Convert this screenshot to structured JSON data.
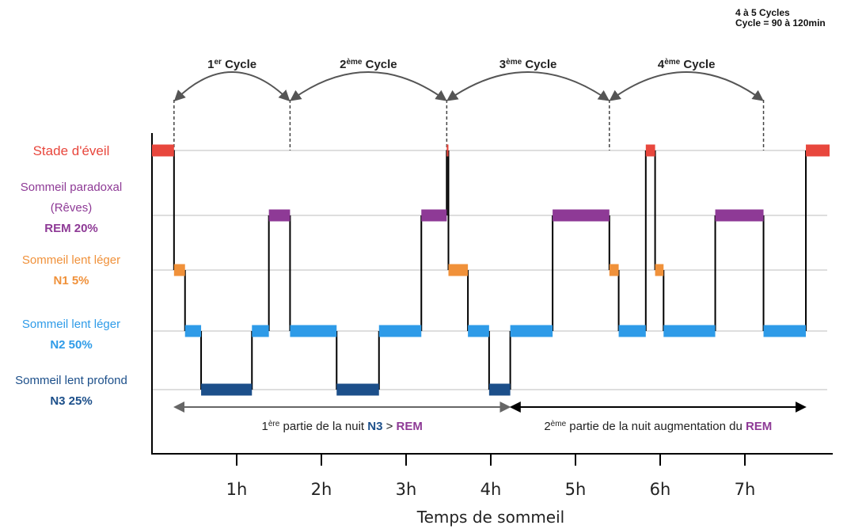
{
  "chart_data": {
    "type": "line",
    "title": "",
    "xlabel": "Temps de sommeil",
    "xlim": [
      0,
      8
    ],
    "x_ticks": [
      "1h",
      "2h",
      "3h",
      "4h",
      "5h",
      "6h",
      "7h"
    ],
    "note": [
      "4 à 5 Cycles",
      "Cycle = 90 à 120min"
    ],
    "stages": [
      {
        "id": "wake",
        "lines": [
          {
            "text": "Stade d'éveil",
            "bold": false
          }
        ],
        "color": "#e8473d"
      },
      {
        "id": "rem",
        "lines": [
          {
            "text": "Sommeil paradoxal",
            "bold": false
          },
          {
            "text": "(Rêves)",
            "bold": false
          },
          {
            "text": "REM 20%",
            "bold": true
          }
        ],
        "color": "#8e3a96"
      },
      {
        "id": "n1",
        "lines": [
          {
            "text": "Sommeil lent léger",
            "bold": false
          },
          {
            "text": "N1 5%",
            "bold": true
          }
        ],
        "color": "#f0913a"
      },
      {
        "id": "n2",
        "lines": [
          {
            "text": "Sommeil lent léger",
            "bold": false
          },
          {
            "text": "N2 50%",
            "bold": true
          }
        ],
        "color": "#2e9be8"
      },
      {
        "id": "n3",
        "lines": [
          {
            "text": "Sommeil lent profond",
            "bold": false
          },
          {
            "text": "N3 25%",
            "bold": true
          }
        ],
        "color": "#1c4f8a"
      }
    ],
    "segments": [
      {
        "stage": "wake",
        "start": 0.0,
        "end": 0.26
      },
      {
        "stage": "n1",
        "start": 0.26,
        "end": 0.39
      },
      {
        "stage": "n2",
        "start": 0.39,
        "end": 0.58
      },
      {
        "stage": "n3",
        "start": 0.58,
        "end": 1.18
      },
      {
        "stage": "n2",
        "start": 1.18,
        "end": 1.38
      },
      {
        "stage": "rem",
        "start": 1.38,
        "end": 1.63
      },
      {
        "stage": "n2",
        "start": 1.63,
        "end": 2.18
      },
      {
        "stage": "n3",
        "start": 2.18,
        "end": 2.68
      },
      {
        "stage": "n2",
        "start": 2.68,
        "end": 3.18
      },
      {
        "stage": "rem",
        "start": 3.18,
        "end": 3.48
      },
      {
        "stage": "wake",
        "start": 3.48,
        "end": 3.5
      },
      {
        "stage": "n1",
        "start": 3.5,
        "end": 3.73
      },
      {
        "stage": "n2",
        "start": 3.73,
        "end": 3.98
      },
      {
        "stage": "n3",
        "start": 3.98,
        "end": 4.23
      },
      {
        "stage": "n2",
        "start": 4.23,
        "end": 4.73
      },
      {
        "stage": "rem",
        "start": 4.73,
        "end": 5.4
      },
      {
        "stage": "n1",
        "start": 5.4,
        "end": 5.51
      },
      {
        "stage": "n2",
        "start": 5.51,
        "end": 5.83
      },
      {
        "stage": "wake",
        "start": 5.83,
        "end": 5.94
      },
      {
        "stage": "n1",
        "start": 5.94,
        "end": 6.04
      },
      {
        "stage": "n2",
        "start": 6.04,
        "end": 6.65
      },
      {
        "stage": "rem",
        "start": 6.65,
        "end": 7.22
      },
      {
        "stage": "n2",
        "start": 7.22,
        "end": 7.72
      },
      {
        "stage": "wake",
        "start": 7.72,
        "end": 8.0
      }
    ],
    "cycle_bounds": [
      0.26,
      1.63,
      3.48,
      5.4,
      7.22
    ],
    "cycles": [
      {
        "num": "1",
        "sup": "er",
        "word": "Cycle"
      },
      {
        "num": "2",
        "sup": "ème",
        "word": "Cycle"
      },
      {
        "num": "3",
        "sup": "ème",
        "word": "Cycle"
      },
      {
        "num": "4",
        "sup": "ème",
        "word": "Cycle"
      }
    ],
    "parts": [
      {
        "range": [
          0.26,
          4.23
        ],
        "num": "1",
        "sup": "ère",
        "text": "partie de la nuit",
        "pieces": [
          {
            "text": "N3",
            "color": "#1c4f8a"
          },
          {
            "text": " > ",
            "color": "#222222"
          },
          {
            "text": "REM",
            "color": "#8e3a96"
          }
        ]
      },
      {
        "range": [
          4.23,
          7.72
        ],
        "num": "2",
        "sup": "ème",
        "text": "partie de la nuit augmentation du",
        "pieces": [
          {
            "text": "REM",
            "color": "#8e3a96"
          }
        ]
      }
    ]
  }
}
